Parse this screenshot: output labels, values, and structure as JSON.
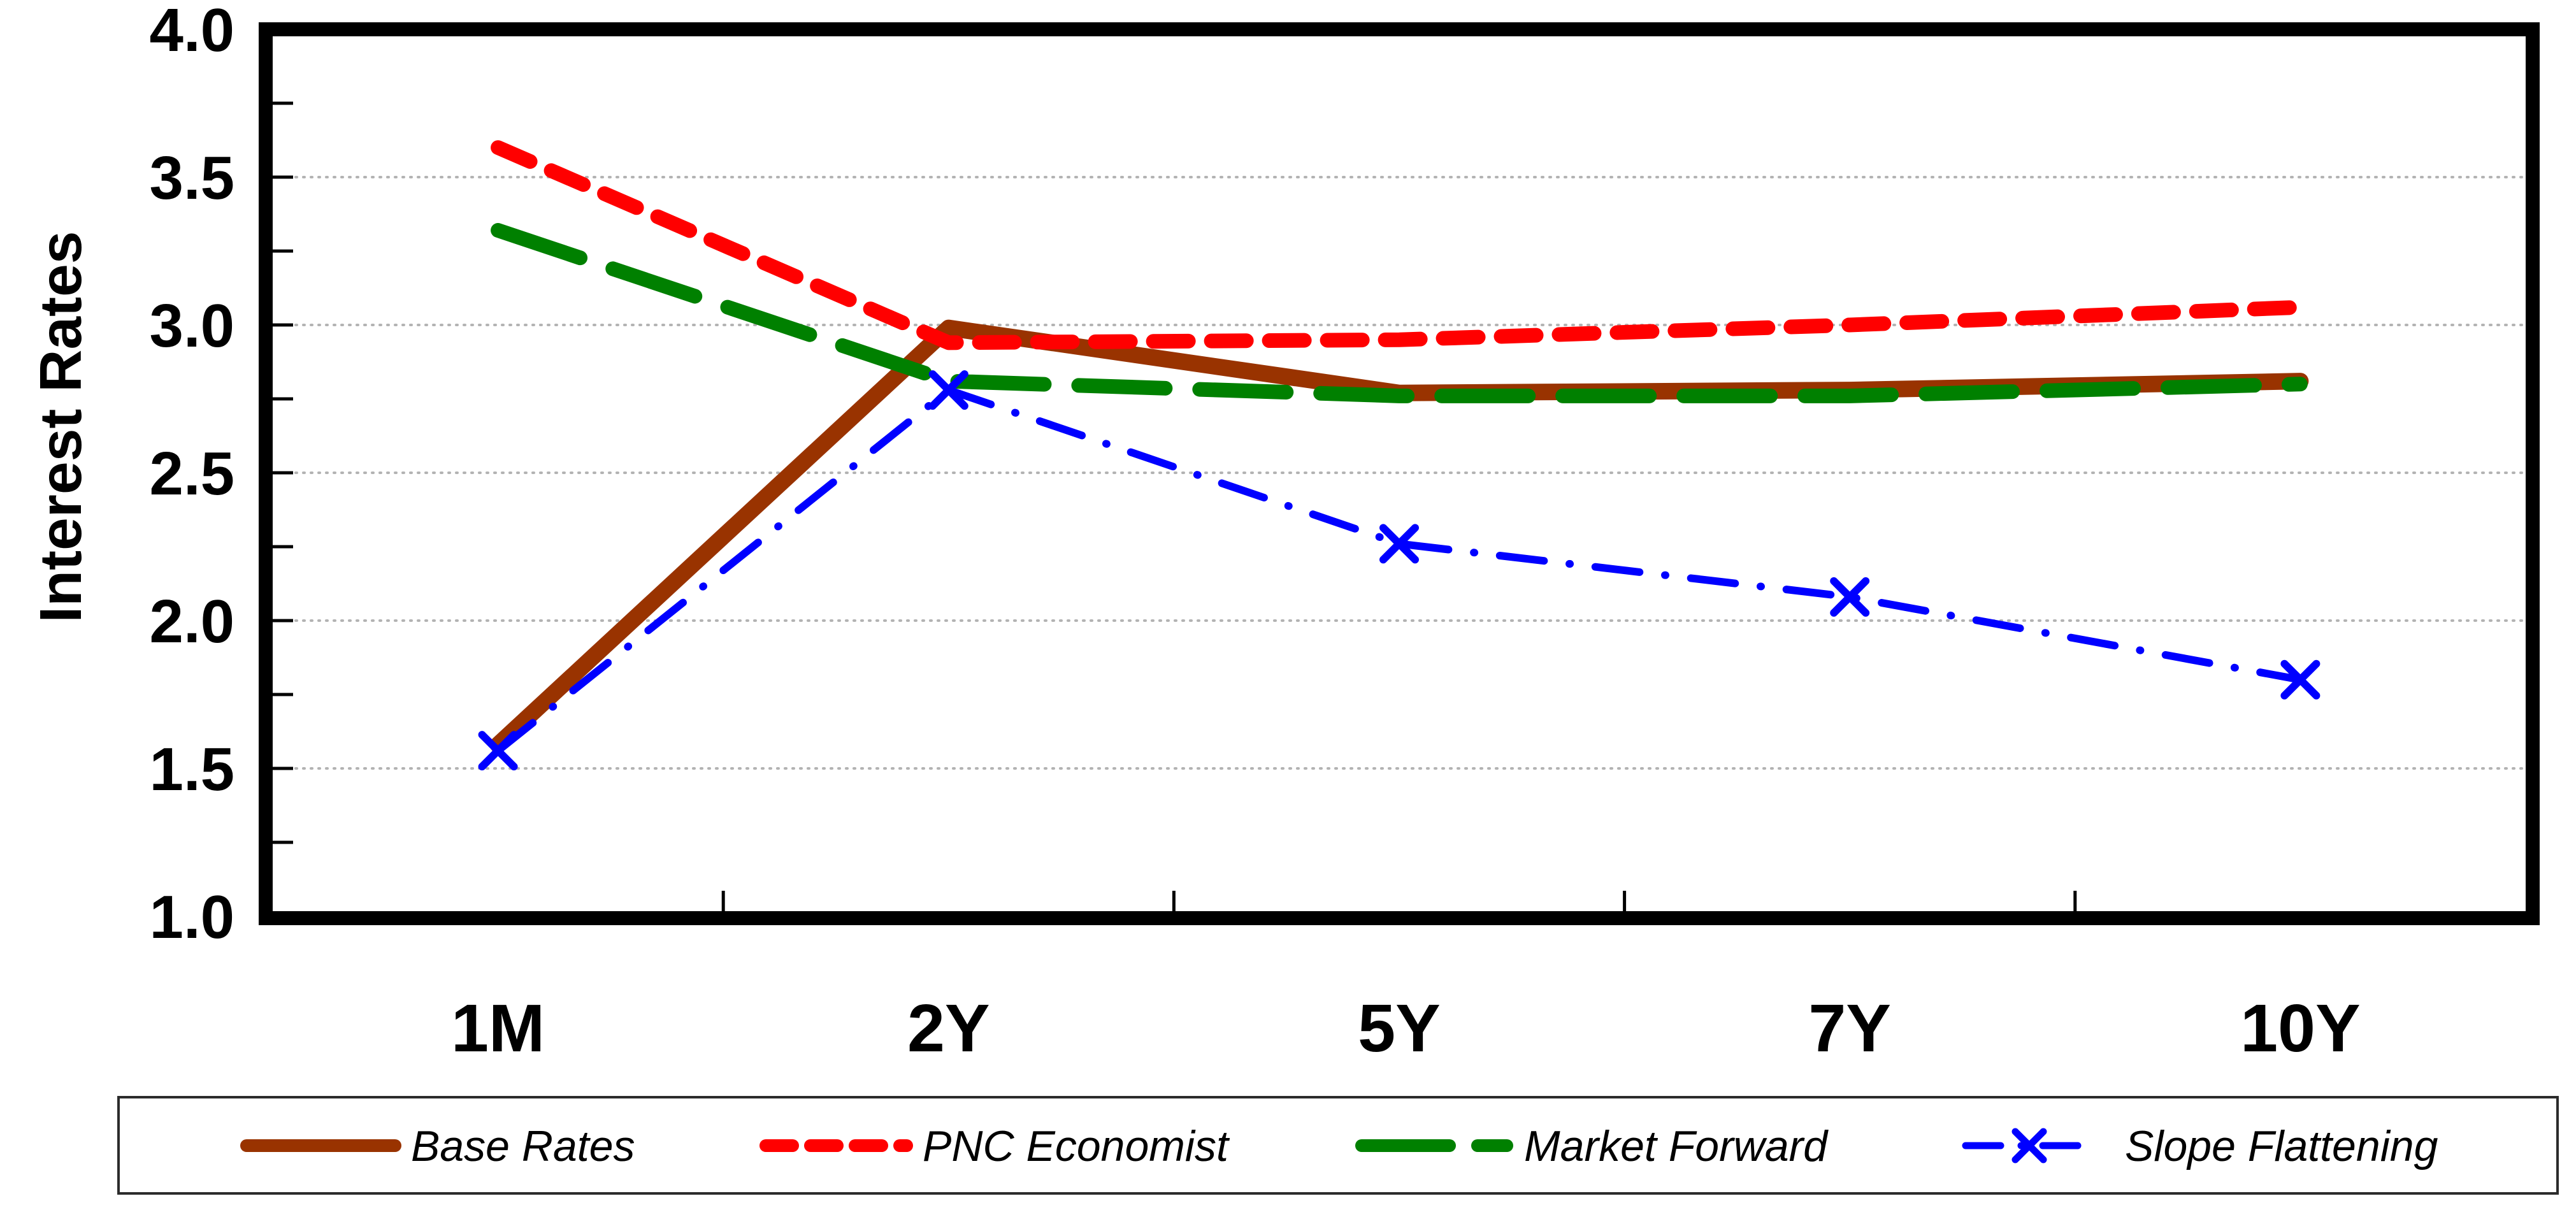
{
  "figure": {
    "background": "#FFFFFF",
    "frame_color": "#000000",
    "gridline_color": "#B3B3B3",
    "tick_color": "#000000",
    "legend_border_color": "#2B2B2B"
  },
  "chart_data": {
    "type": "line",
    "title": "",
    "xlabel": "",
    "ylabel": "Interest Rates",
    "categories": [
      "1M",
      "2Y",
      "5Y",
      "7Y",
      "10Y"
    ],
    "ylim": [
      1.0,
      4.0
    ],
    "y_tick_labels": [
      "1.0",
      "1.5",
      "2.0",
      "2.5",
      "3.0",
      "3.5",
      "4.0"
    ],
    "y_major_step": 0.5,
    "y_minor_step": 0.25,
    "grid": "horizontal dotted gridlines at each 0.5 major tick",
    "legend_position": "bottom",
    "series": [
      {
        "name": "Base Rates",
        "color": "#993300",
        "style": "solid",
        "marker": "none",
        "values": [
          1.58,
          2.99,
          2.77,
          2.78,
          2.81
        ]
      },
      {
        "name": "PNC Economist",
        "color": "#FF0000",
        "style": "dash",
        "marker": "none",
        "values": [
          3.6,
          2.94,
          2.95,
          3.0,
          3.06
        ]
      },
      {
        "name": "Market Forward",
        "color": "#008000",
        "style": "long-dash",
        "marker": "none",
        "values": [
          3.32,
          2.81,
          2.76,
          2.76,
          2.8
        ]
      },
      {
        "name": "Slope Flattening",
        "color": "#0000FF",
        "style": "dash-dot",
        "marker": "x",
        "values": [
          1.56,
          2.78,
          2.26,
          2.08,
          1.8
        ]
      }
    ]
  }
}
